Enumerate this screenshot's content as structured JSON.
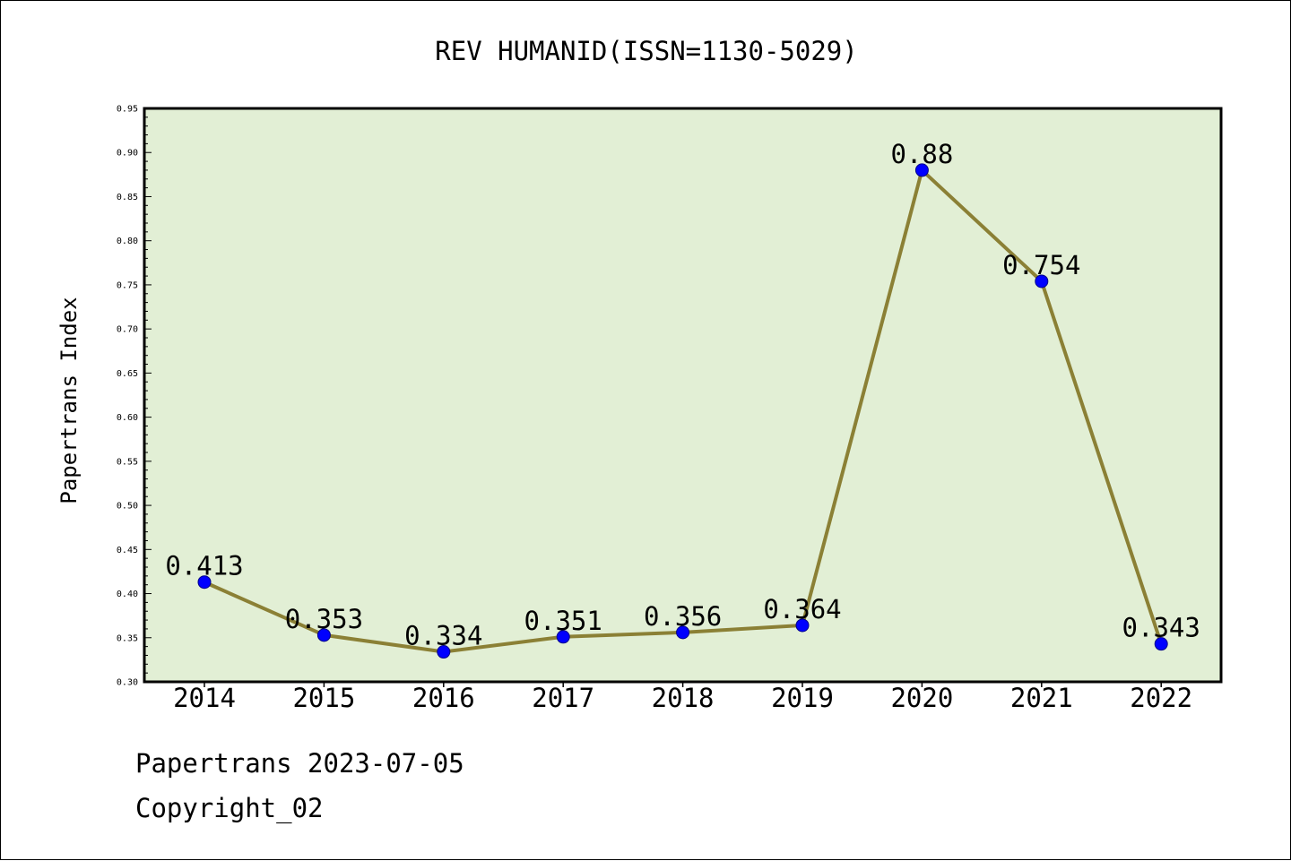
{
  "chart_data": {
    "type": "line",
    "title": "REV HUMANID(ISSN=1130-5029)",
    "xlabel": "",
    "ylabel": "Papertrans Index",
    "categories": [
      "2014",
      "2015",
      "2016",
      "2017",
      "2018",
      "2019",
      "2020",
      "2021",
      "2022"
    ],
    "series": [
      {
        "values": [
          0.413,
          0.353,
          0.334,
          0.351,
          0.356,
          0.364,
          0.88,
          0.754,
          0.343
        ],
        "labels": [
          "0.413",
          "0.353",
          "0.334",
          "0.351",
          "0.356",
          "0.364",
          "0.88",
          "0.754",
          "0.343"
        ]
      }
    ],
    "ylim": [
      0.3,
      0.95
    ],
    "yticks": [
      "0.30",
      "0.35",
      "0.40",
      "0.45",
      "0.50",
      "0.55",
      "0.60",
      "0.65",
      "0.70",
      "0.75",
      "0.80",
      "0.85",
      "0.90",
      "0.95"
    ],
    "grid": false,
    "legend": "none",
    "colors": {
      "plot_background": "#e2efd5",
      "line": "#8b8035",
      "marker": "#0000ff"
    }
  },
  "footer": {
    "date_line": "Papertrans 2023-07-05",
    "copyright_line": "Copyright_02"
  }
}
